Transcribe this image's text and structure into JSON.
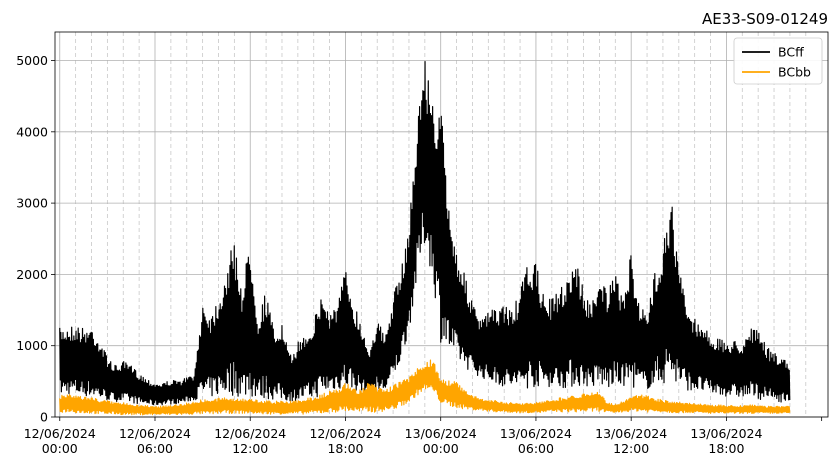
{
  "chart_data": {
    "type": "line",
    "title": "AE33-S09-01249",
    "xlabel": "",
    "ylabel": "",
    "x_ticks": [
      {
        "date": "12/06/2024",
        "time": "00:00"
      },
      {
        "date": "12/06/2024",
        "time": "06:00"
      },
      {
        "date": "12/06/2024",
        "time": "12:00"
      },
      {
        "date": "12/06/2024",
        "time": "18:00"
      },
      {
        "date": "13/06/2024",
        "time": "00:00"
      },
      {
        "date": "13/06/2024",
        "time": "06:00"
      },
      {
        "date": "13/06/2024",
        "time": "12:00"
      },
      {
        "date": "13/06/2024",
        "time": "18:00"
      }
    ],
    "xlim_hours": [
      -0.3,
      48.4
    ],
    "data_x_range_hours": [
      0,
      47.8
    ],
    "ylim": [
      0,
      5400
    ],
    "y_ticks": [
      0,
      1000,
      2000,
      3000,
      4000,
      5000
    ],
    "grid": true,
    "minor_grid": "dashed, 1-hour spacing",
    "legend_position": "top-right",
    "series": [
      {
        "name": "BCff",
        "color": "#000000",
        "x_hours": [
          0,
          0.5,
          1,
          1.5,
          2,
          2.5,
          3,
          3.5,
          4,
          4.5,
          5,
          5.5,
          6,
          6.5,
          7,
          7.5,
          8,
          8.5,
          9,
          9.5,
          10,
          10.5,
          11,
          11.5,
          12,
          12.5,
          13,
          13.5,
          14,
          14.5,
          15,
          15.5,
          16,
          16.5,
          17,
          17.5,
          18,
          18.5,
          19,
          19.5,
          20,
          20.5,
          21,
          21.5,
          22,
          22.5,
          23,
          23.5,
          24,
          24.5,
          25,
          25.5,
          26,
          26.5,
          27,
          27.5,
          28,
          28.5,
          29,
          29.5,
          30,
          30.5,
          31,
          31.5,
          32,
          32.5,
          33,
          33.5,
          34,
          34.5,
          35,
          35.5,
          36,
          36.5,
          37,
          37.5,
          38,
          38.5,
          39,
          39.5,
          40,
          40.5,
          41,
          41.5,
          42,
          42.5,
          43,
          43.5,
          44,
          44.5,
          45,
          45.5,
          46,
          46.5,
          47,
          47.5,
          47.8
        ],
        "envelope_max": [
          1250,
          1280,
          1300,
          1250,
          1280,
          1100,
          850,
          720,
          780,
          720,
          620,
          540,
          480,
          480,
          520,
          500,
          560,
          600,
          1650,
          1450,
          1700,
          2100,
          2500,
          1800,
          2550,
          1400,
          1800,
          1200,
          1300,
          850,
          1050,
          1200,
          1350,
          1750,
          1500,
          1600,
          2100,
          1650,
          1300,
          950,
          1400,
          1100,
          1700,
          2050,
          2700,
          4100,
          5120,
          4380,
          4420,
          3000,
          2350,
          2000,
          1600,
          1350,
          1500,
          1500,
          1600,
          1500,
          1750,
          2200,
          2150,
          1700,
          1650,
          1800,
          2000,
          2250,
          1800,
          1550,
          2100,
          1750,
          2000,
          1700,
          2300,
          1650,
          1400,
          2050,
          2500,
          3120,
          2150,
          1550,
          1400,
          1300,
          1150,
          1100,
          1050,
          1080,
          1050,
          1300,
          1200,
          1000,
          900,
          850,
          700
        ],
        "envelope_min": [
          300,
          320,
          300,
          290,
          280,
          250,
          230,
          220,
          210,
          200,
          180,
          170,
          160,
          170,
          180,
          190,
          210,
          240,
          260,
          270,
          300,
          310,
          290,
          280,
          270,
          260,
          250,
          240,
          230,
          220,
          230,
          240,
          260,
          300,
          350,
          380,
          400,
          380,
          340,
          300,
          330,
          360,
          500,
          800,
          1200,
          1900,
          2400,
          1950,
          1050,
          900,
          800,
          700,
          620,
          560,
          500,
          460,
          420,
          400,
          380,
          400,
          420,
          430,
          420,
          410,
          400,
          420,
          430,
          420,
          400,
          390,
          410,
          430,
          420,
          400,
          390,
          420,
          460,
          480,
          420,
          380,
          360,
          340,
          320,
          300,
          290,
          280,
          270,
          260,
          250,
          240,
          220,
          210,
          200
        ]
      },
      {
        "name": "BCbb",
        "color": "#ffa500",
        "x_hours": [
          0,
          0.5,
          1,
          1.5,
          2,
          2.5,
          3,
          3.5,
          4,
          4.5,
          5,
          5.5,
          6,
          6.5,
          7,
          7.5,
          8,
          8.5,
          9,
          9.5,
          10,
          10.5,
          11,
          11.5,
          12,
          12.5,
          13,
          13.5,
          14,
          14.5,
          15,
          15.5,
          16,
          16.5,
          17,
          17.5,
          18,
          18.5,
          19,
          19.5,
          20,
          20.5,
          21,
          21.5,
          22,
          22.5,
          23,
          23.5,
          24,
          24.5,
          25,
          25.5,
          26,
          26.5,
          27,
          27.5,
          28,
          28.5,
          29,
          29.5,
          30,
          30.5,
          31,
          31.5,
          32,
          32.5,
          33,
          33.5,
          34,
          34.5,
          35,
          35.5,
          36,
          36.5,
          37,
          37.5,
          38,
          38.5,
          39,
          39.5,
          40,
          40.5,
          41,
          41.5,
          42,
          42.5,
          43,
          43.5,
          44,
          44.5,
          45,
          45.5,
          46,
          46.5,
          47,
          47.5,
          47.8
        ],
        "envelope_max": [
          300,
          320,
          300,
          290,
          280,
          250,
          230,
          210,
          200,
          190,
          170,
          160,
          150,
          160,
          170,
          180,
          200,
          220,
          250,
          240,
          260,
          280,
          270,
          260,
          250,
          240,
          230,
          220,
          230,
          220,
          240,
          260,
          280,
          320,
          360,
          400,
          480,
          420,
          380,
          500,
          420,
          380,
          450,
          500,
          560,
          680,
          760,
          820,
          540,
          520,
          500,
          380,
          300,
          260,
          240,
          230,
          210,
          200,
          190,
          200,
          210,
          220,
          250,
          270,
          290,
          310,
          330,
          340,
          380,
          200,
          180,
          220,
          280,
          320,
          300,
          260,
          240,
          220,
          210,
          200,
          190,
          180,
          170,
          170,
          160,
          160,
          160,
          170,
          160,
          150,
          150,
          150,
          150
        ],
        "envelope_min": [
          60,
          70,
          60,
          50,
          50,
          40,
          40,
          40,
          30,
          30,
          30,
          30,
          30,
          30,
          30,
          30,
          30,
          40,
          40,
          40,
          50,
          50,
          50,
          50,
          50,
          40,
          40,
          40,
          40,
          40,
          40,
          40,
          50,
          50,
          60,
          70,
          80,
          70,
          60,
          60,
          70,
          80,
          100,
          150,
          200,
          300,
          380,
          350,
          200,
          150,
          130,
          110,
          100,
          90,
          80,
          70,
          70,
          60,
          60,
          60,
          60,
          60,
          70,
          70,
          70,
          70,
          70,
          70,
          80,
          60,
          60,
          70,
          80,
          80,
          70,
          70,
          70,
          60,
          60,
          60,
          60,
          50,
          50,
          50,
          50,
          50,
          50,
          50,
          50,
          50,
          50,
          50,
          50
        ]
      }
    ]
  }
}
